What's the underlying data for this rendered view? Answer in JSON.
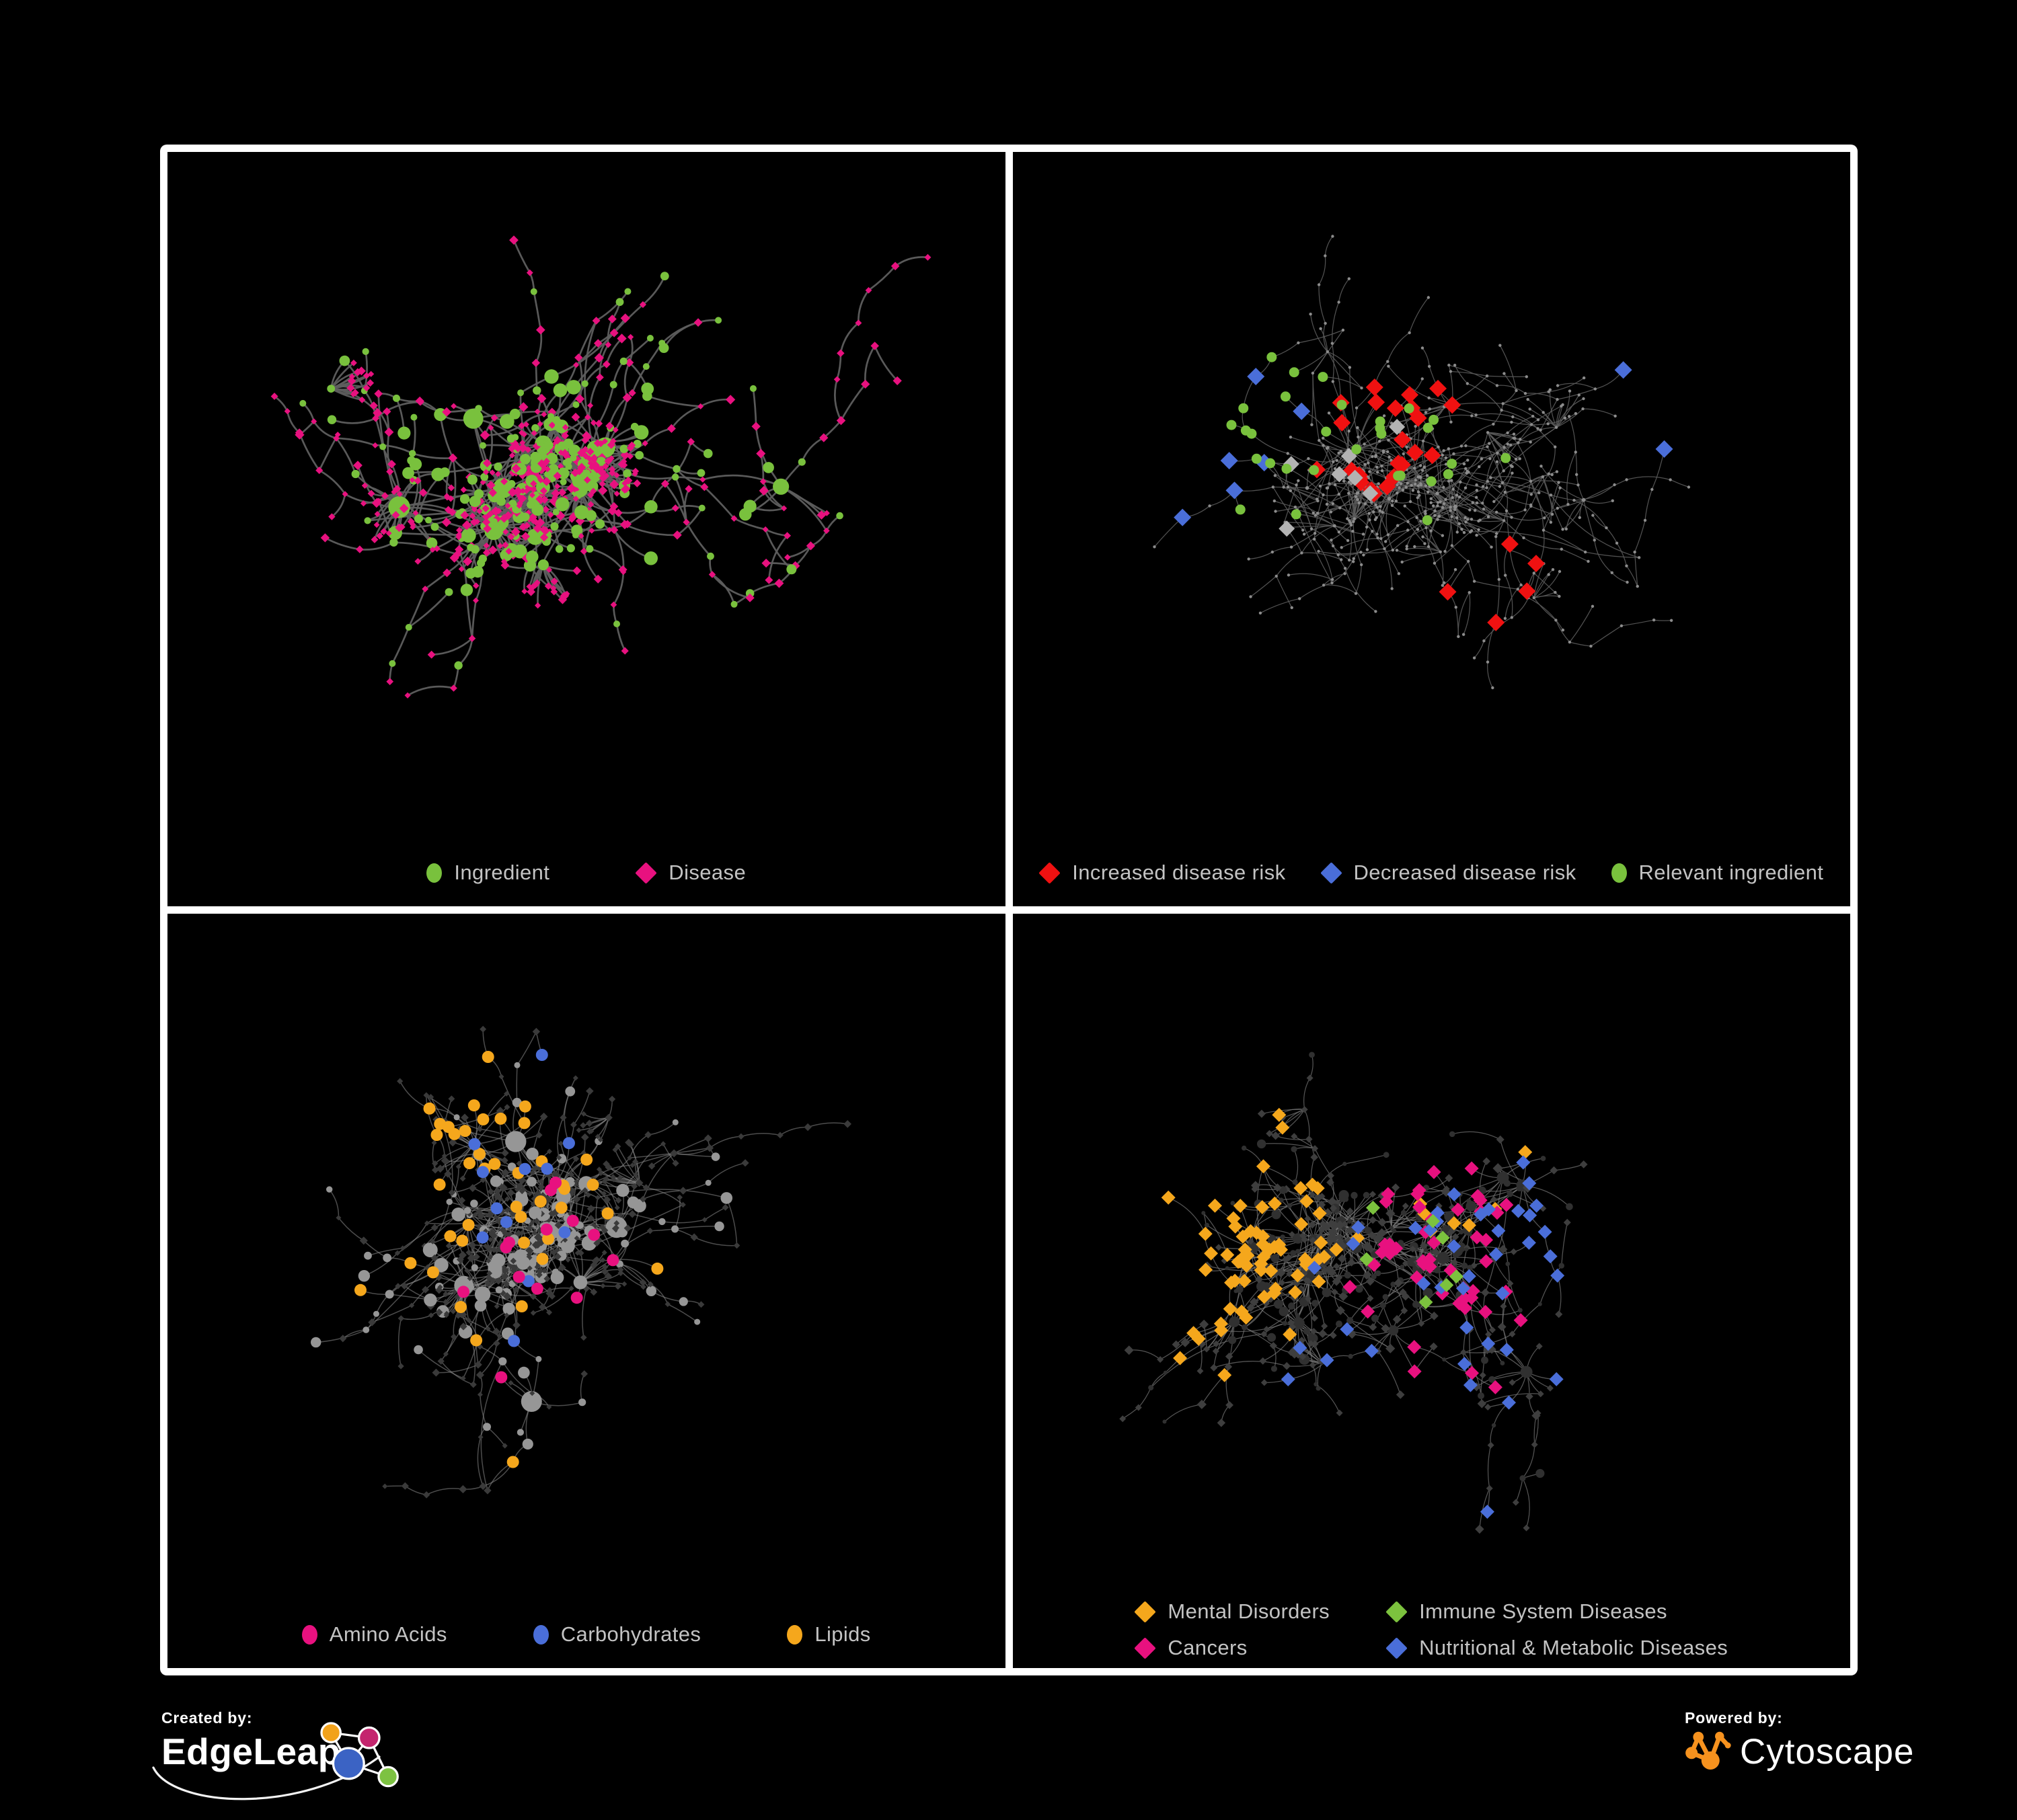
{
  "figure": {
    "background": "#000000",
    "frame_color": "#FFFFFF"
  },
  "branding": {
    "created_by": {
      "label": "Created by:",
      "name": "EdgeLeap"
    },
    "powered_by": {
      "label": "Powered by:",
      "name": "Cytoscape"
    }
  },
  "colors": {
    "green": "#79C13D",
    "pink": "#E8117F",
    "red": "#F01111",
    "blue": "#4A6ED9",
    "orange": "#F5A71C",
    "gray_node": "#909090",
    "light_gray_diamond": "#B3B3B3",
    "dark_diamond": "#3E3E3E",
    "dark_circle": "#303030",
    "edge_gray": "#5E5E5E",
    "legend_text": "#C3C3C3",
    "cytoscape_orange": "#F6921E",
    "edgeleap_logo": {
      "orange": "#F2A21B",
      "magenta": "#C4256E",
      "blue": "#3B63C4",
      "green": "#7DC242"
    }
  },
  "network": {
    "nodes": 640,
    "hubs": 16,
    "ingredientFrac": 0.33,
    "bursts": 7,
    "extraEdgeFrac": 0.05
  },
  "panels": [
    {
      "name": "ingredient-disease-network",
      "seed": 20240,
      "legend": [
        {
          "label": "Ingredient",
          "shape": "circle",
          "color": "#79C13D"
        },
        {
          "label": "Disease",
          "shape": "diamond",
          "color": "#E8117F"
        }
      ],
      "render": {
        "edge": {
          "c": "#5E5E5E",
          "w": 2.7,
          "o": 0.95
        },
        "base": {
          "i": {
            "sh": "c",
            "col": "#79C13D",
            "k": 1.15,
            "min": 5,
            "max": 18
          },
          "d": {
            "sh": "d",
            "col": "#E8117F",
            "k": 1.3,
            "min": 4.5,
            "max": 8
          }
        },
        "hi": []
      }
    },
    {
      "name": "disease-risk-network",
      "seed": 9137,
      "legend": [
        {
          "label": "Increased disease risk",
          "shape": "diamond",
          "color": "#F01111"
        },
        {
          "label": "Decreased disease risk",
          "shape": "diamond",
          "color": "#4A6ED9"
        },
        {
          "label": "Relevant ingredient",
          "shape": "circle",
          "color": "#79C13D"
        }
      ],
      "render": {
        "edge": {
          "c": "#5A5A5A",
          "w": 1.25,
          "o": 0.9
        },
        "base": {
          "i": {
            "sh": "c",
            "col": "#8C8C8C",
            "k": 0.2,
            "min": 2.2,
            "max": 4.5
          },
          "d": {
            "sh": "c",
            "col": "#8C8C8C",
            "k": 0.2,
            "min": 2.2,
            "max": 4.5
          }
        },
        "hi": [
          {
            "t": "d",
            "n": 24,
            "col": "#F01111",
            "sh": "d",
            "s": 13,
            "b": [
              0.45,
              0.33
            ],
            "sp": 0.17
          },
          {
            "t": "d",
            "n": 5,
            "col": "#F01111",
            "sh": "d",
            "s": 13,
            "b": [
              0.55,
              0.75
            ],
            "sp": 0.45
          },
          {
            "t": "d",
            "n": 6,
            "col": "#4A6ED9",
            "sh": "d",
            "s": 13,
            "b": [
              0.2,
              0.33
            ],
            "sp": 0.07
          },
          {
            "t": "d",
            "n": 2,
            "col": "#4A6ED9",
            "sh": "d",
            "s": 13,
            "b": [
              0.83,
              0.24
            ],
            "sp": 0.03
          },
          {
            "t": "d",
            "n": 7,
            "col": "#B3B3B3",
            "sh": "d",
            "s": 12,
            "b": [
              0.33,
              0.36
            ],
            "sp": 0.22
          },
          {
            "t": "i",
            "n": 24,
            "col": "#79C13D",
            "sh": "c",
            "s": 7.5,
            "b": [
              0.43,
              0.33
            ],
            "sp": 0.2
          },
          {
            "t": "i",
            "n": 6,
            "col": "#79C13D",
            "sh": "c",
            "s": 7.5,
            "b": [
              0.2,
              0.3
            ],
            "sp": 0.1
          }
        ]
      }
    },
    {
      "name": "nutrient-class-network",
      "seed": 5521,
      "legend": [
        {
          "label": "Amino Acids",
          "shape": "circle",
          "color": "#E8117F"
        },
        {
          "label": "Carbohydrates",
          "shape": "circle",
          "color": "#4A6ED9"
        },
        {
          "label": "Lipids",
          "shape": "circle",
          "color": "#F5A71C"
        }
      ],
      "render": {
        "edge": {
          "c": "#8A8A8A",
          "w": 1.5,
          "o": 0.55
        },
        "base": {
          "i": {
            "sh": "c",
            "col": "#969696",
            "k": 1.2,
            "min": 4.5,
            "max": 16
          },
          "d": {
            "sh": "d",
            "col": "#3A3A3A",
            "k": 1.1,
            "min": 4,
            "max": 7
          }
        },
        "hi": [
          {
            "t": "i",
            "n": 26,
            "col": "#F5A71C",
            "sh": "c",
            "s": 9,
            "b": [
              0.35,
              0.25
            ],
            "sp": 0.14
          },
          {
            "t": "i",
            "n": 16,
            "col": "#F5A71C",
            "sh": "c",
            "s": 9,
            "b": [
              0.45,
              0.62
            ],
            "sp": 0.4
          },
          {
            "t": "i",
            "n": 9,
            "col": "#4A6ED9",
            "sh": "c",
            "s": 9,
            "b": [
              0.33,
              0.26
            ],
            "sp": 0.12
          },
          {
            "t": "i",
            "n": 3,
            "col": "#4A6ED9",
            "sh": "c",
            "s": 9,
            "b": [
              0.7,
              0.6
            ],
            "sp": 0.4
          },
          {
            "t": "i",
            "n": 13,
            "col": "#E8117F",
            "sh": "c",
            "s": 9,
            "b": [
              0.5,
              0.6
            ],
            "sp": 0.45
          }
        ]
      }
    },
    {
      "name": "disease-class-network",
      "seed": 777,
      "legend_rows": [
        [
          {
            "label": "Mental Disorders",
            "shape": "diamond",
            "color": "#F5A71C"
          },
          {
            "label": "Immune System Diseases",
            "shape": "diamond",
            "color": "#7CC23E"
          }
        ],
        [
          {
            "label": "Cancers",
            "shape": "diamond",
            "color": "#E8117F"
          },
          {
            "label": "Nutritional & Metabolic Diseases",
            "shape": "diamond",
            "color": "#4A6ED9"
          }
        ]
      ],
      "render": {
        "edge": {
          "c": "#777777",
          "w": 1.25,
          "o": 0.7
        },
        "base": {
          "i": {
            "sh": "c",
            "col": "#303030",
            "k": 0.85,
            "min": 3,
            "max": 9
          },
          "d": {
            "sh": "d",
            "col": "#3E3E3E",
            "k": 1.3,
            "min": 5,
            "max": 8.5
          }
        },
        "hi": [
          {
            "t": "d",
            "n": 62,
            "col": "#F5A71C",
            "sh": "d",
            "s": 10.5,
            "b": [
              0.17,
              0.42
            ],
            "sp": 0.12
          },
          {
            "t": "d",
            "n": 12,
            "col": "#F5A71C",
            "sh": "d",
            "s": 10.5,
            "b": [
              0.45,
              0.2
            ],
            "sp": 0.45
          },
          {
            "t": "d",
            "n": 38,
            "col": "#E8117F",
            "sh": "d",
            "s": 10.5,
            "b": [
              0.53,
              0.49
            ],
            "sp": 0.15
          },
          {
            "t": "d",
            "n": 9,
            "col": "#E8117F",
            "sh": "d",
            "s": 10.5,
            "b": [
              0.75,
              0.25
            ],
            "sp": 0.35
          },
          {
            "t": "d",
            "n": 22,
            "col": "#4A6ED9",
            "sh": "d",
            "s": 10.5,
            "b": [
              0.74,
              0.42
            ],
            "sp": 0.18
          },
          {
            "t": "d",
            "n": 18,
            "col": "#4A6ED9",
            "sh": "d",
            "s": 10.5,
            "b": [
              0.5,
              0.75
            ],
            "sp": 0.45
          },
          {
            "t": "d",
            "n": 7,
            "col": "#7CC23E",
            "sh": "d",
            "s": 10.5,
            "b": [
              0.48,
              0.42
            ],
            "sp": 0.3
          }
        ]
      }
    }
  ]
}
